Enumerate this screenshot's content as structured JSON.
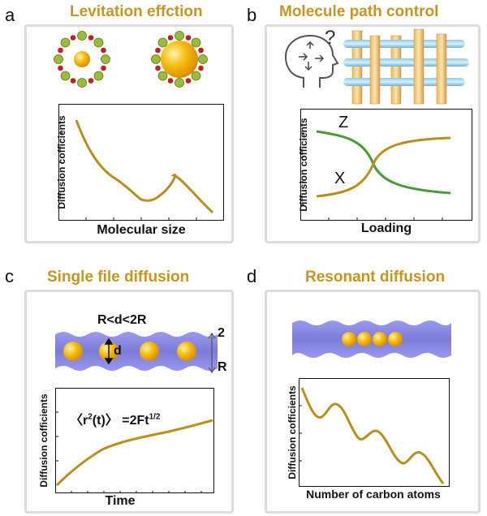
{
  "panels": {
    "a": {
      "letter": "a",
      "title": "Levitation effction",
      "ylabel": "Diffusion cofficients",
      "xlabel": "Molecular size"
    },
    "b": {
      "letter": "b",
      "title": "Molecule path control",
      "ylabel": "Diffusion cofficients",
      "xlabel": "Loading",
      "curve_labels": {
        "z": "Z",
        "x": "X"
      },
      "question_mark": "?"
    },
    "c": {
      "letter": "c",
      "title": "Single file diffusion",
      "ylabel": "Diffusion cofficients",
      "xlabel": "Time",
      "constraint": "R<d<2R",
      "d_label": "d",
      "two_label": "2",
      "r_label": "R",
      "formula_main": "〈r",
      "formula_sup1": "2",
      "formula_mid": "(t)〉 =2Ft",
      "formula_sup2": "1/2"
    },
    "d": {
      "letter": "d",
      "title": "Resonant diffusion",
      "ylabel": "Diffusion cofficients",
      "xlabel": "Number of carbon atoms"
    }
  },
  "colors": {
    "title": "#c8961e",
    "curve_gold": "#b8901c",
    "curve_green": "#4a9a3a",
    "channel": "#8e8ee6",
    "ball": "#f5b000"
  }
}
